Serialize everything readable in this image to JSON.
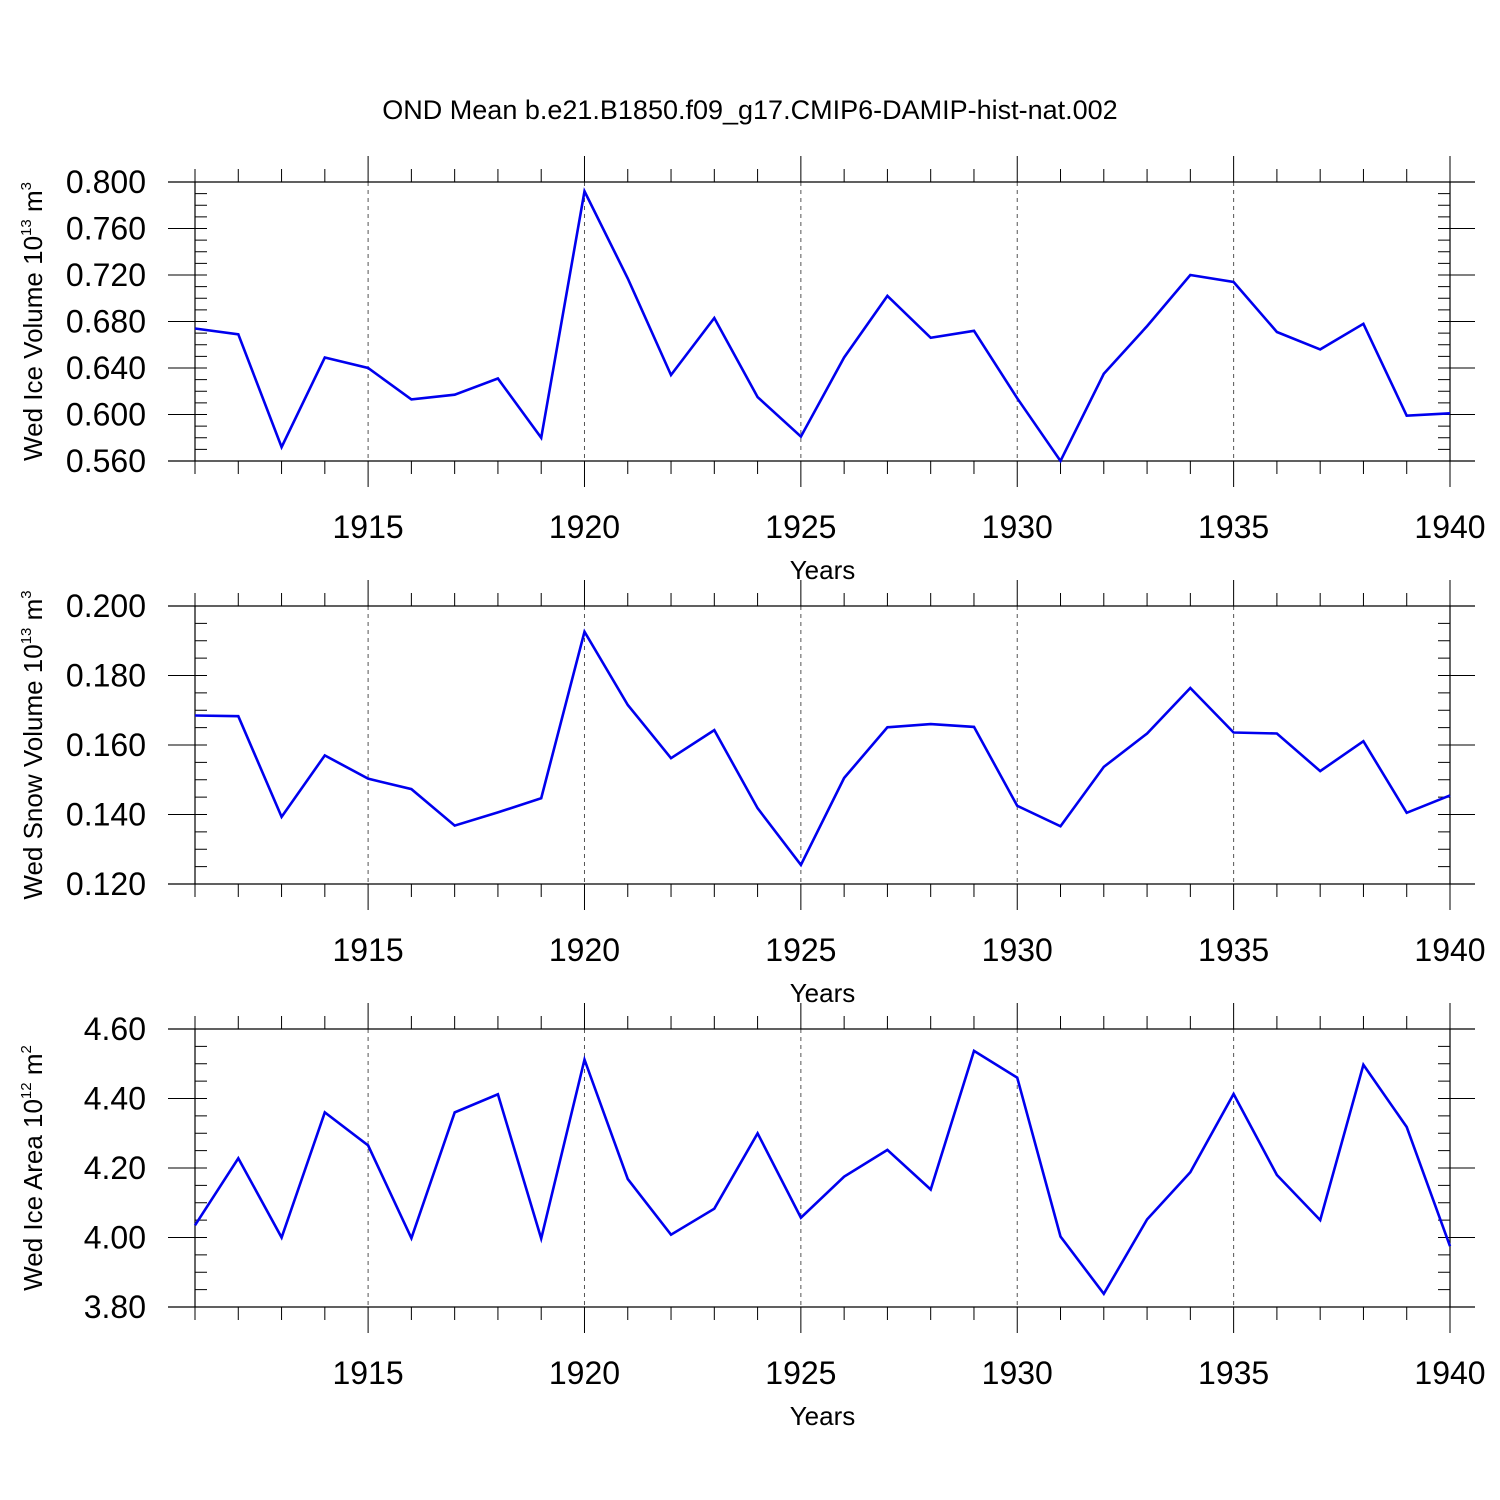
{
  "figure": {
    "title": "OND Mean b.e21.B1850.f09_g17.CMIP6-DAMIP-hist-nat.002",
    "line_color": "#0000ee",
    "grid": "vertical dashed lines at major x ticks"
  },
  "chart_data": [
    {
      "type": "line",
      "name": "ice-volume",
      "xlabel": "Years",
      "ylabel": "Wed Ice Volume 10",
      "ylabel_exp": "13",
      "ylabel_unit": " m",
      "ylabel_unit_exp": "3",
      "xlim": [
        1911,
        1940
      ],
      "ylim": [
        0.56,
        0.8
      ],
      "xticks": [
        1915,
        1920,
        1925,
        1930,
        1935,
        1940
      ],
      "xtick_labels": [
        "1915",
        "1920",
        "1925",
        "1930",
        "1935",
        "1940"
      ],
      "yticks": [
        0.56,
        0.6,
        0.64,
        0.68,
        0.72,
        0.76,
        0.8
      ],
      "ytick_labels": [
        "0.560",
        "0.600",
        "0.640",
        "0.680",
        "0.720",
        "0.760",
        "0.800"
      ],
      "x": [
        1911,
        1912,
        1913,
        1914,
        1915,
        1916,
        1917,
        1918,
        1919,
        1920,
        1921,
        1922,
        1923,
        1924,
        1925,
        1926,
        1927,
        1928,
        1929,
        1930,
        1931,
        1932,
        1933,
        1934,
        1935,
        1936,
        1937,
        1938,
        1939,
        1940
      ],
      "values": [
        0.674,
        0.669,
        0.572,
        0.649,
        0.64,
        0.613,
        0.617,
        0.631,
        0.58,
        0.792,
        0.717,
        0.634,
        0.683,
        0.615,
        0.581,
        0.649,
        0.702,
        0.666,
        0.672,
        0.614,
        0.56,
        0.635,
        0.676,
        0.72,
        0.714,
        0.671,
        0.656,
        0.678,
        0.599,
        0.601
      ]
    },
    {
      "type": "line",
      "name": "snow-volume",
      "xlabel": "Years",
      "ylabel": "Wed Snow Volume 10",
      "ylabel_exp": "13",
      "ylabel_unit": " m",
      "ylabel_unit_exp": "3",
      "xlim": [
        1911,
        1940
      ],
      "ylim": [
        0.12,
        0.2
      ],
      "xticks": [
        1915,
        1920,
        1925,
        1930,
        1935,
        1940
      ],
      "xtick_labels": [
        "1915",
        "1920",
        "1925",
        "1930",
        "1935",
        "1940"
      ],
      "yticks": [
        0.12,
        0.14,
        0.16,
        0.18,
        0.2
      ],
      "ytick_labels": [
        "0.120",
        "0.140",
        "0.160",
        "0.180",
        "0.200"
      ],
      "x": [
        1911,
        1912,
        1913,
        1914,
        1915,
        1916,
        1917,
        1918,
        1919,
        1920,
        1921,
        1922,
        1923,
        1924,
        1925,
        1926,
        1927,
        1928,
        1929,
        1930,
        1931,
        1932,
        1933,
        1934,
        1935,
        1936,
        1937,
        1938,
        1939,
        1940
      ],
      "values": [
        0.1685,
        0.1683,
        0.1393,
        0.157,
        0.1503,
        0.1473,
        0.1368,
        0.1406,
        0.1447,
        0.1926,
        0.1715,
        0.1562,
        0.1643,
        0.1418,
        0.1255,
        0.1505,
        0.1651,
        0.166,
        0.1652,
        0.1425,
        0.1366,
        0.1537,
        0.1633,
        0.1764,
        0.1636,
        0.1633,
        0.1525,
        0.1611,
        0.1405,
        0.1455
      ]
    },
    {
      "type": "line",
      "name": "ice-area",
      "xlabel": "Years",
      "ylabel": "Wed Ice Area 10",
      "ylabel_exp": "12",
      "ylabel_unit": " m",
      "ylabel_unit_exp": "2",
      "xlim": [
        1911,
        1940
      ],
      "ylim": [
        3.8,
        4.6
      ],
      "xticks": [
        1915,
        1920,
        1925,
        1930,
        1935,
        1940
      ],
      "xtick_labels": [
        "1915",
        "1920",
        "1925",
        "1930",
        "1935",
        "1940"
      ],
      "yticks": [
        3.8,
        4.0,
        4.2,
        4.4,
        4.6
      ],
      "ytick_labels": [
        "3.80",
        "4.00",
        "4.20",
        "4.40",
        "4.60"
      ],
      "x": [
        1911,
        1912,
        1913,
        1914,
        1915,
        1916,
        1917,
        1918,
        1919,
        1920,
        1921,
        1922,
        1923,
        1924,
        1925,
        1926,
        1927,
        1928,
        1929,
        1930,
        1931,
        1932,
        1933,
        1934,
        1935,
        1936,
        1937,
        1938,
        1939,
        1940
      ],
      "values": [
        4.035,
        4.228,
        4.0,
        4.36,
        4.265,
        3.998,
        4.36,
        4.412,
        3.997,
        4.512,
        4.168,
        4.008,
        4.083,
        4.3,
        4.057,
        4.175,
        4.252,
        4.138,
        4.537,
        4.46,
        4.003,
        3.838,
        4.052,
        4.188,
        4.413,
        4.18,
        4.05,
        4.497,
        4.318,
        3.975
      ]
    }
  ]
}
